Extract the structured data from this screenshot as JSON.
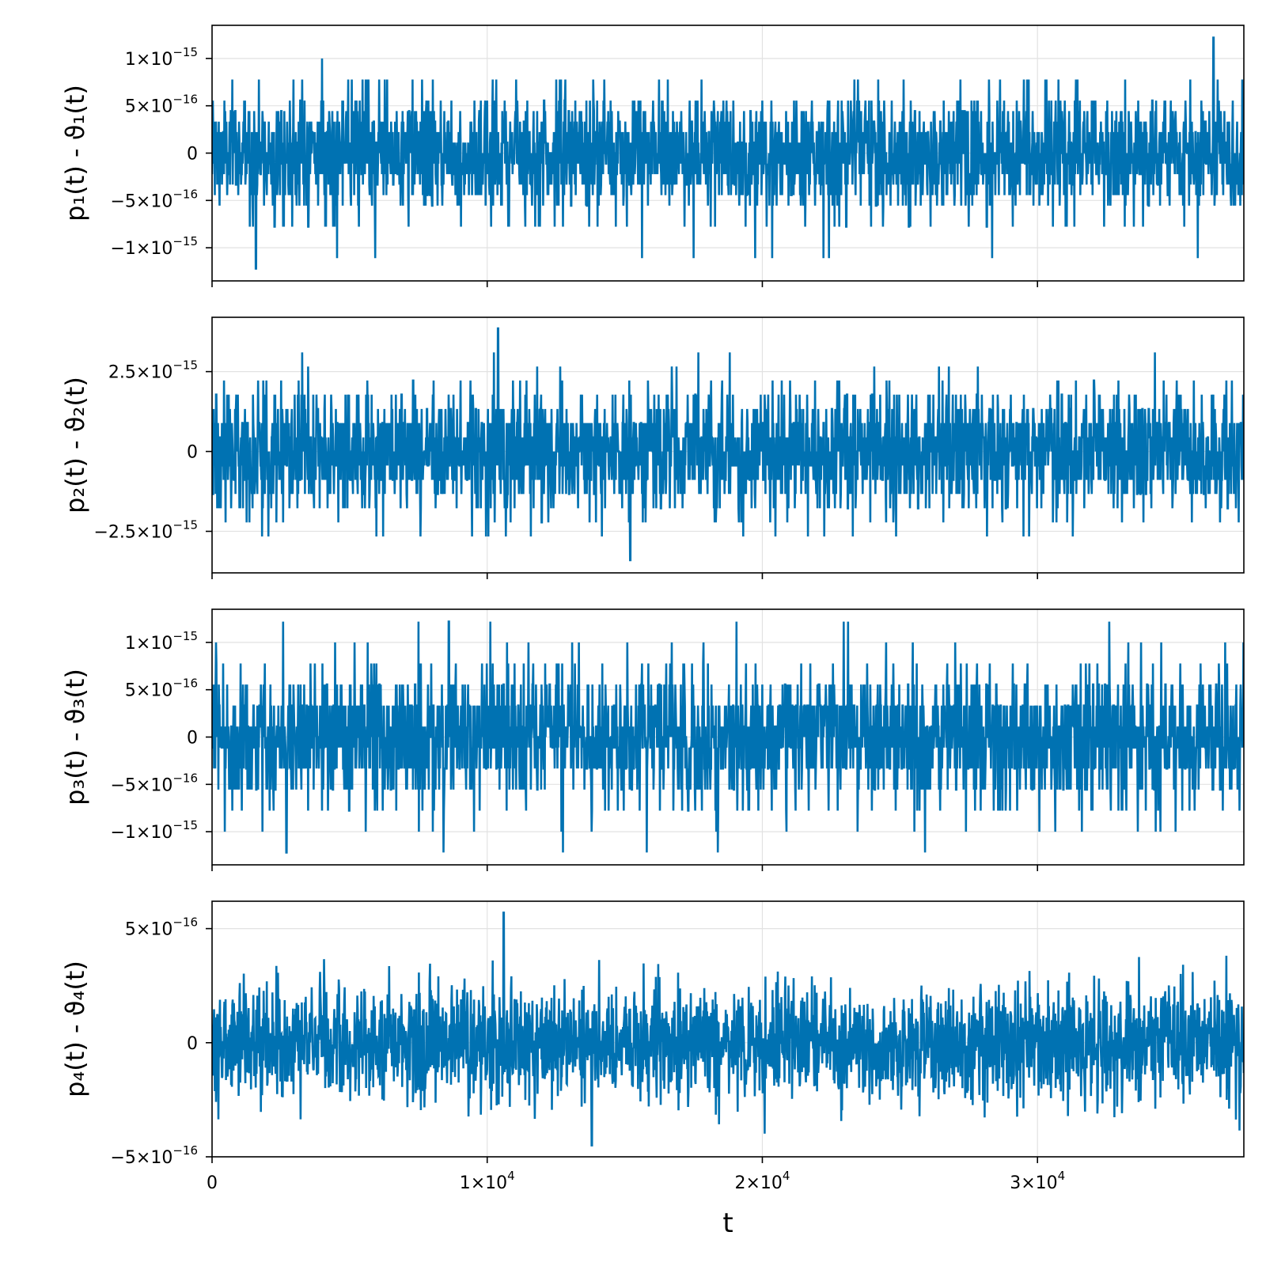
{
  "chart_data": [
    {
      "type": "line",
      "ylabel": "p₁(t) - ϑ₁(t)",
      "xlim": [
        0,
        37500
      ],
      "ylim": [
        -1.35e-15,
        1.35e-15
      ],
      "y_ticks": [
        {
          "value": -1e-15,
          "mant": "−1×10",
          "exp": "−15"
        },
        {
          "value": -5e-16,
          "mant": "−5×10",
          "exp": "−16"
        },
        {
          "value": 0,
          "mant": "0",
          "exp": ""
        },
        {
          "value": 5e-16,
          "mant": "5×10",
          "exp": "−16"
        },
        {
          "value": 1e-15,
          "mant": "1×10",
          "exp": "−15"
        }
      ],
      "series": [
        {
          "color": "#0072b2",
          "levels": [
            -1.11e-15,
            -7.77e-16,
            -5.55e-16,
            -4.44e-16,
            -3.33e-16,
            -2.22e-16,
            -1.11e-16,
            0,
            1.11e-16,
            2.22e-16,
            3.33e-16,
            4.44e-16,
            5.55e-16,
            7.77e-16,
            1e-15
          ],
          "spread": 3.3e-16,
          "min": {
            "x": 1600,
            "y": -1.22e-15
          },
          "max": {
            "x": 36400,
            "y": 1.22e-15
          }
        }
      ],
      "grid": true
    },
    {
      "type": "line",
      "ylabel": "p₂(t) - ϑ₂(t)",
      "xlim": [
        0,
        37500
      ],
      "ylim": [
        -3.8e-15,
        4.2e-15
      ],
      "y_ticks": [
        {
          "value": -2.5e-15,
          "mant": "−2.5×10",
          "exp": "−15"
        },
        {
          "value": 0,
          "mant": "0",
          "exp": ""
        },
        {
          "value": 2.5e-15,
          "mant": "2.5×10",
          "exp": "−15"
        }
      ],
      "series": [
        {
          "color": "#0072b2",
          "levels": [
            -2.66e-15,
            -2.22e-15,
            -1.78e-15,
            -1.33e-15,
            -8.9e-16,
            -4.4e-16,
            0,
            4.4e-16,
            8.9e-16,
            1.33e-15,
            1.78e-15,
            2.22e-15,
            2.66e-15,
            3.1e-15
          ],
          "spread": 1e-15,
          "min": {
            "x": 15200,
            "y": -3.4e-15
          },
          "max": {
            "x": 10400,
            "y": 3.85e-15
          }
        }
      ],
      "grid": true
    },
    {
      "type": "line",
      "ylabel": "p₃(t) - ϑ₃(t)",
      "xlim": [
        0,
        37500
      ],
      "ylim": [
        -1.35e-15,
        1.35e-15
      ],
      "y_ticks": [
        {
          "value": -1e-15,
          "mant": "−1×10",
          "exp": "−15"
        },
        {
          "value": -5e-16,
          "mant": "−5×10",
          "exp": "−16"
        },
        {
          "value": 0,
          "mant": "0",
          "exp": ""
        },
        {
          "value": 5e-16,
          "mant": "5×10",
          "exp": "−16"
        },
        {
          "value": 1e-15,
          "mant": "1×10",
          "exp": "−15"
        }
      ],
      "series": [
        {
          "color": "#0072b2",
          "levels": [
            -1.22e-15,
            -1e-15,
            -7.77e-16,
            -5.55e-16,
            -3.33e-16,
            -1.11e-16,
            0,
            1.11e-16,
            3.33e-16,
            5.55e-16,
            7.77e-16,
            1e-15,
            1.22e-15
          ],
          "spread": 3.8e-16,
          "min": {
            "x": 2700,
            "y": -1.22e-15
          },
          "max": {
            "x": 8600,
            "y": 1.22e-15
          }
        }
      ],
      "grid": true
    },
    {
      "type": "line",
      "ylabel": "p₄(t) - ϑ₄(t)",
      "xlabel": "t",
      "xlim": [
        0,
        37500
      ],
      "ylim": [
        -5e-16,
        6.2e-16
      ],
      "y_ticks": [
        {
          "value": -5e-16,
          "mant": "−5×10",
          "exp": "−16"
        },
        {
          "value": 0,
          "mant": "0",
          "exp": ""
        },
        {
          "value": 5e-16,
          "mant": "5×10",
          "exp": "−16"
        }
      ],
      "x_ticks": [
        {
          "value": 0,
          "mant": "0",
          "exp": ""
        },
        {
          "value": 10000,
          "mant": "1×10",
          "exp": "4"
        },
        {
          "value": 20000,
          "mant": "2×10",
          "exp": "4"
        },
        {
          "value": 30000,
          "mant": "3×10",
          "exp": "4"
        }
      ],
      "series": [
        {
          "color": "#0072b2",
          "levels": null,
          "spread": 1.25e-16,
          "min": {
            "x": 13800,
            "y": -4.5e-16
          },
          "max": {
            "x": 10600,
            "y": 5.7e-16
          }
        }
      ],
      "grid": true
    }
  ]
}
